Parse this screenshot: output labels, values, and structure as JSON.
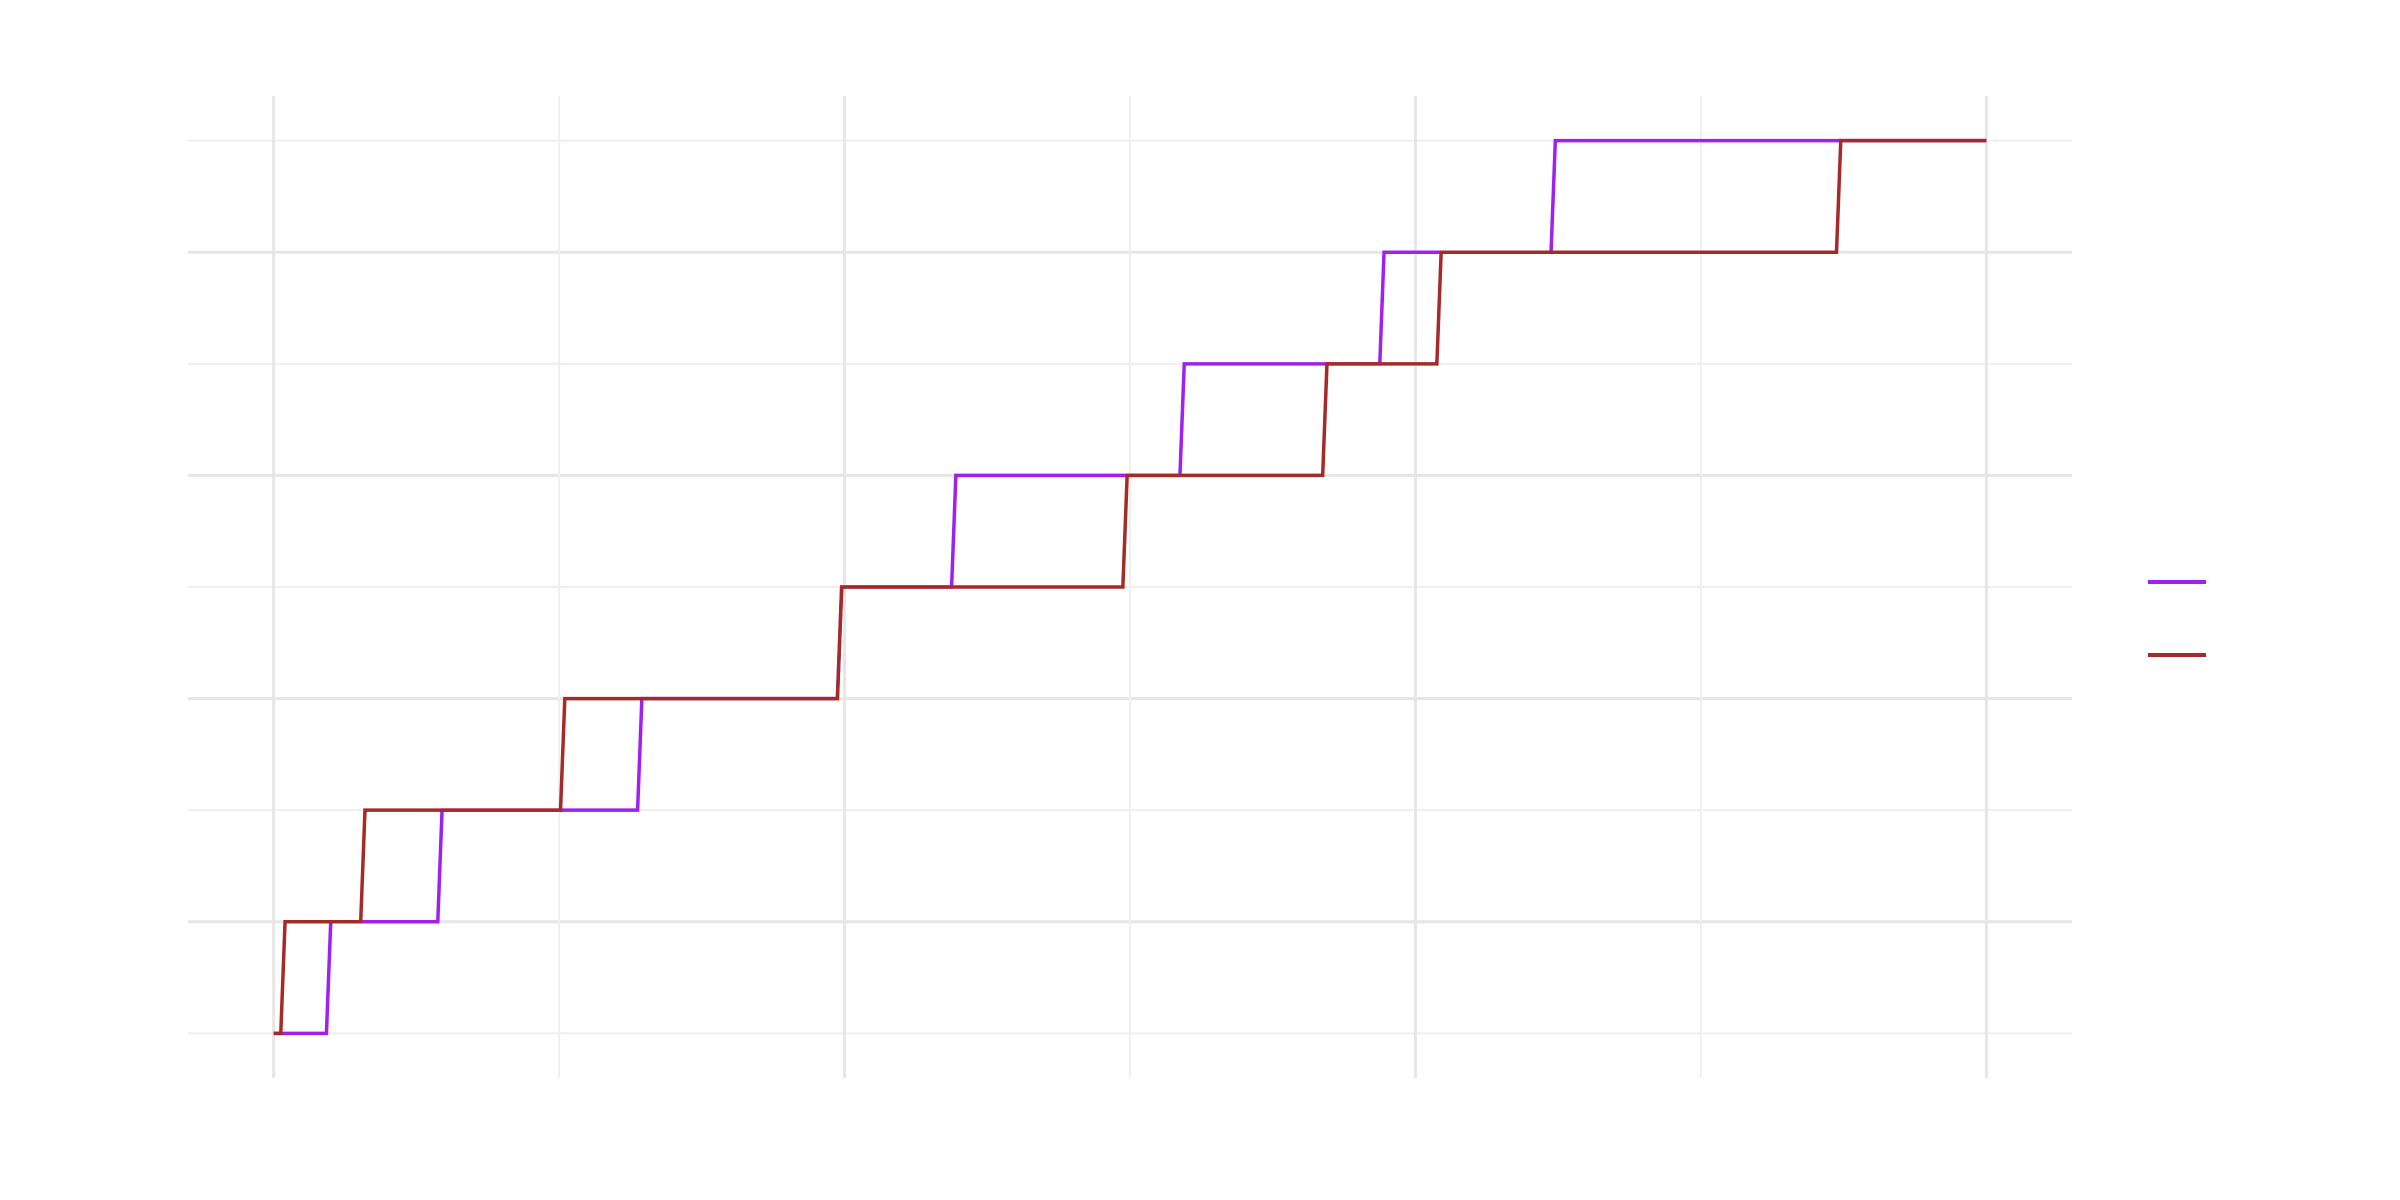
{
  "chart_data": {
    "type": "line",
    "title": "",
    "xlabel": "",
    "ylabel": "",
    "xlim": [
      -0.3,
      6.3
    ],
    "ylim": [
      -0.4,
      8.4
    ],
    "x_major_ticks": [
      0,
      2,
      4,
      6
    ],
    "x_minor_ticks": [
      1,
      3,
      5
    ],
    "y_major_ticks": [
      1,
      3,
      5,
      7
    ],
    "y_minor_ticks": [
      0,
      2,
      4,
      6,
      8
    ],
    "grid": true,
    "legend_position": "right",
    "series": [
      {
        "color": "#a020f0",
        "steps": [
          {
            "x": 0.0,
            "y": 0
          },
          {
            "x": 0.2,
            "y": 1
          },
          {
            "x": 0.59,
            "y": 2
          },
          {
            "x": 1.29,
            "y": 3
          },
          {
            "x": 1.99,
            "y": 4
          },
          {
            "x": 2.39,
            "y": 5
          },
          {
            "x": 3.19,
            "y": 6
          },
          {
            "x": 3.89,
            "y": 7
          },
          {
            "x": 4.49,
            "y": 8
          },
          {
            "x": 6.0,
            "y": 8
          }
        ]
      },
      {
        "color": "#a52a2a",
        "steps": [
          {
            "x": 0.0,
            "y": 0
          },
          {
            "x": 0.04,
            "y": 1
          },
          {
            "x": 0.32,
            "y": 2
          },
          {
            "x": 1.02,
            "y": 3
          },
          {
            "x": 1.99,
            "y": 4
          },
          {
            "x": 2.99,
            "y": 5
          },
          {
            "x": 3.69,
            "y": 6
          },
          {
            "x": 4.09,
            "y": 7
          },
          {
            "x": 5.49,
            "y": 8
          },
          {
            "x": 6.0,
            "y": 8
          }
        ]
      }
    ]
  }
}
